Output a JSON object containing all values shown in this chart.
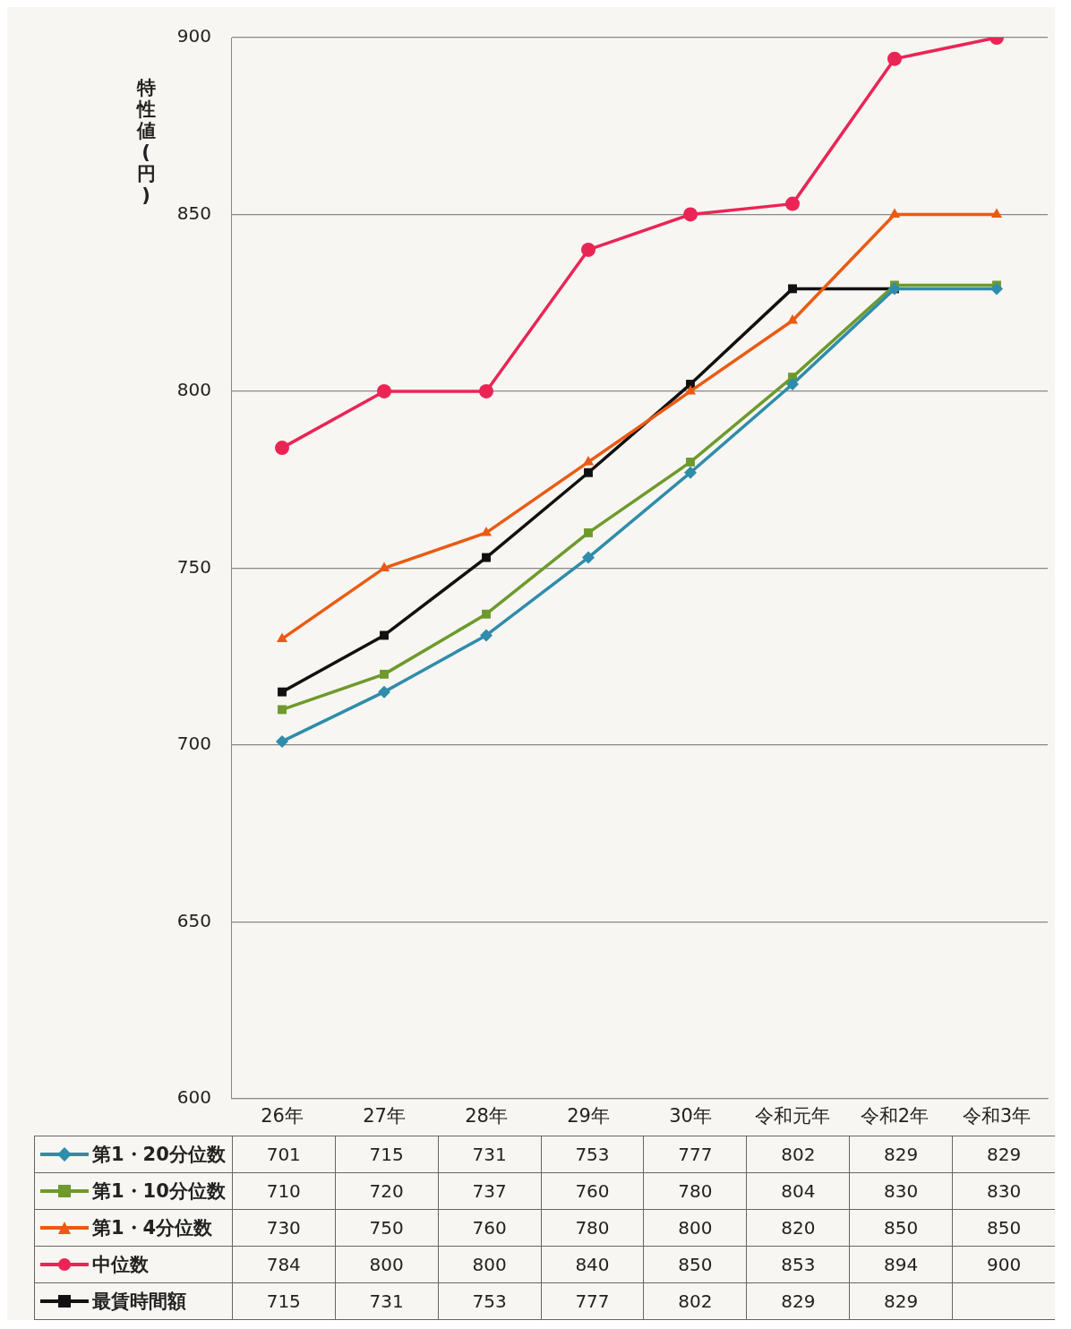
{
  "chart_data": {
    "type": "line",
    "ylabel": "特性値(円)",
    "categories": [
      "26年",
      "27年",
      "28年",
      "29年",
      "30年",
      "令和元年",
      "令和2年",
      "令和3年"
    ],
    "series": [
      {
        "name": "第1・20分位数",
        "color": "#2f8cab",
        "marker": "diamond",
        "values": [
          701,
          715,
          731,
          753,
          777,
          802,
          829,
          829
        ]
      },
      {
        "name": "第1・10分位数",
        "color": "#6e9a2c",
        "marker": "square",
        "values": [
          710,
          720,
          737,
          760,
          780,
          804,
          830,
          830
        ]
      },
      {
        "name": "第1・4分位数",
        "color": "#eb5a12",
        "marker": "triangle",
        "values": [
          730,
          750,
          760,
          780,
          800,
          820,
          850,
          850
        ]
      },
      {
        "name": "中位数",
        "color": "#ea2556",
        "marker": "circle",
        "values": [
          784,
          800,
          800,
          840,
          850,
          853,
          894,
          900
        ]
      },
      {
        "name": "最賃時間額",
        "color": "#111111",
        "marker": "square",
        "values": [
          715,
          731,
          753,
          777,
          802,
          829,
          829,
          null
        ]
      }
    ],
    "ylim": [
      600,
      900
    ],
    "yticks": [
      600,
      650,
      700,
      750,
      800,
      850,
      900
    ],
    "grid": "y",
    "legend": "bottom",
    "data_labels": true,
    "line_style": "solid"
  }
}
